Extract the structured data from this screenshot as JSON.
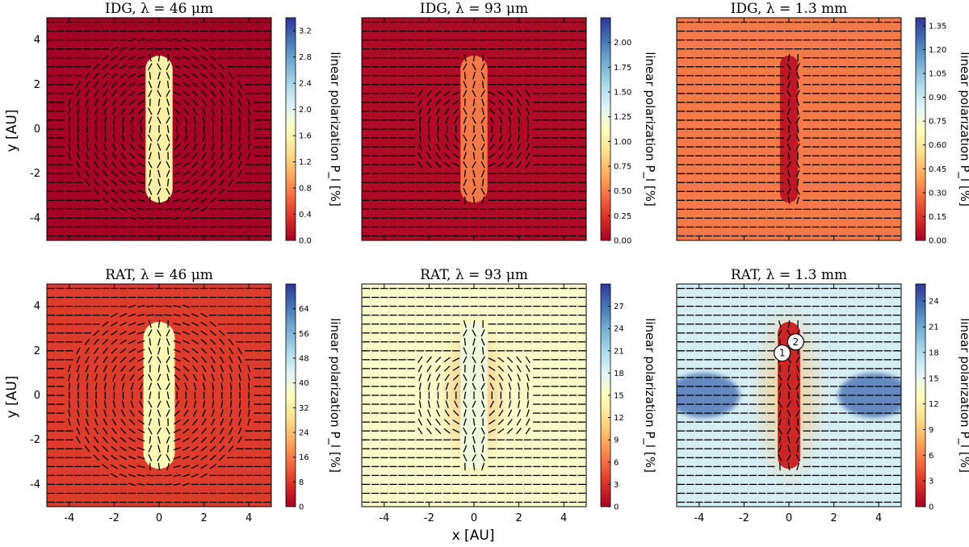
{
  "figure": {
    "ylabel": "y [AU]",
    "xlabel": "x [AU]",
    "colorbar_label": "linear polarization P_l [%]"
  },
  "colors": {
    "colormap": [
      "#a50026",
      "#d73027",
      "#f46d43",
      "#fdae61",
      "#fee090",
      "#ffffbf",
      "#e0f3f8",
      "#abd9e9",
      "#74add1",
      "#4575b4",
      "#313695"
    ],
    "vectors": "#000000",
    "marker_fill": "#ffffff"
  },
  "chart_data": [
    {
      "type": "heatmap",
      "title": "IDG, λ = 46 μm",
      "model": "IDG",
      "wavelength": "46 μm",
      "xlim": [
        -5,
        5
      ],
      "ylim": [
        -5,
        5
      ],
      "xticks": [],
      "yticks": [
        "4",
        "2",
        "0",
        "-2",
        "-4"
      ],
      "colorbar": {
        "min": 0,
        "max": 3.4,
        "ticks": [
          "0.0",
          "0.4",
          "0.8",
          "1.2",
          "1.6",
          "2.0",
          "2.4",
          "2.8",
          "3.2"
        ]
      },
      "background_level": 0.0,
      "lobe": {
        "half_width": 0.6,
        "half_height": 3.3,
        "level": 0.45
      },
      "central_feature": {
        "level": 0.5,
        "radius": 0.4
      },
      "vector_pattern": "azimuthal",
      "markers": []
    },
    {
      "type": "heatmap",
      "title": "IDG, λ = 93 μm",
      "model": "IDG",
      "wavelength": "93 μm",
      "xlim": [
        -5,
        5
      ],
      "ylim": [
        -5,
        5
      ],
      "xticks": [],
      "yticks": [
        "4",
        "2",
        "0",
        "-2",
        "-4"
      ],
      "colorbar": {
        "min": 0,
        "max": 2.25,
        "ticks": [
          "0.00",
          "0.25",
          "0.50",
          "0.75",
          "1.00",
          "1.25",
          "1.50",
          "1.75",
          "2.00"
        ]
      },
      "background_level": 0.02,
      "lobe": {
        "half_width": 0.6,
        "half_height": 3.3,
        "level": 0.22
      },
      "central_feature": {
        "level": 0.3,
        "radius": 0.4
      },
      "vector_pattern": "cross",
      "markers": []
    },
    {
      "type": "heatmap",
      "title": "IDG, λ = 1.3 mm",
      "model": "IDG",
      "wavelength": "1.3 mm",
      "xlim": [
        -5,
        5
      ],
      "ylim": [
        -5,
        5
      ],
      "xticks": [],
      "yticks": [
        "4",
        "2",
        "0",
        "-2",
        "-4"
      ],
      "colorbar": {
        "min": 0,
        "max": 1.4,
        "ticks": [
          "0.00",
          "0.15",
          "0.30",
          "0.45",
          "0.60",
          "0.75",
          "0.90",
          "1.05",
          "1.20",
          "1.35"
        ]
      },
      "background_level": 0.22,
      "lobe": {
        "half_width": 0.4,
        "half_height": 3.3,
        "level": 0.05
      },
      "central_feature": {
        "level": 0.08,
        "radius": 0.3
      },
      "vector_pattern": "horizontal",
      "markers": []
    },
    {
      "type": "heatmap",
      "title": "RAT, λ = 46 μm",
      "model": "RAT",
      "wavelength": "46 μm",
      "xlim": [
        -5,
        5
      ],
      "ylim": [
        -5,
        5
      ],
      "xticks": [
        "-4",
        "-2",
        "0",
        "2",
        "4"
      ],
      "yticks": [
        "4",
        "2",
        "0",
        "-2",
        "-4"
      ],
      "colorbar": {
        "min": 0,
        "max": 72,
        "ticks": [
          "0",
          "8",
          "16",
          "24",
          "32",
          "40",
          "48",
          "56",
          "64"
        ]
      },
      "background_level": 0.12,
      "lobe": {
        "half_width": 0.7,
        "half_height": 3.3,
        "level": 0.48
      },
      "central_feature": {
        "level": 0.62,
        "radius": 0.7
      },
      "vector_pattern": "azimuthal",
      "markers": []
    },
    {
      "type": "heatmap",
      "title": "RAT, λ = 93 μm",
      "model": "RAT",
      "wavelength": "93 μm",
      "xlim": [
        -5,
        5
      ],
      "ylim": [
        -5,
        5
      ],
      "xticks": [
        "-4",
        "-2",
        "0",
        "2",
        "4"
      ],
      "yticks": [
        "4",
        "2",
        "0",
        "-2",
        "-4"
      ],
      "colorbar": {
        "min": 0,
        "max": 30,
        "ticks": [
          "0",
          "3",
          "6",
          "9",
          "12",
          "15",
          "18",
          "21",
          "24",
          "27"
        ]
      },
      "background_level": 0.52,
      "lobe": {
        "half_width": 0.6,
        "half_height": 3.3,
        "level": 0.55
      },
      "central_feature": {
        "level": 0.3,
        "radius": 1.6
      },
      "vector_pattern": "cross",
      "markers": []
    },
    {
      "type": "heatmap",
      "title": "RAT, λ = 1.3 mm",
      "model": "RAT",
      "wavelength": "1.3 mm",
      "xlim": [
        -5,
        5
      ],
      "ylim": [
        -5,
        5
      ],
      "xticks": [
        "-4",
        "-2",
        "0",
        "2",
        "4"
      ],
      "yticks": [
        "4",
        "2",
        "0",
        "-2",
        "-4"
      ],
      "colorbar": {
        "min": 0,
        "max": 26,
        "ticks": [
          "0",
          "3",
          "6",
          "9",
          "12",
          "15",
          "18",
          "21",
          "24"
        ]
      },
      "background_level": 0.62,
      "lobe": {
        "half_width": 0.5,
        "half_height": 3.3,
        "level": 0.08
      },
      "central_feature": {
        "level": 0.35,
        "radius": 1.8
      },
      "vector_pattern": "horizontal",
      "markers": [
        {
          "label": "1",
          "x": -0.3,
          "y": 1.9
        },
        {
          "label": "2",
          "x": 0.3,
          "y": 2.4
        }
      ]
    }
  ]
}
